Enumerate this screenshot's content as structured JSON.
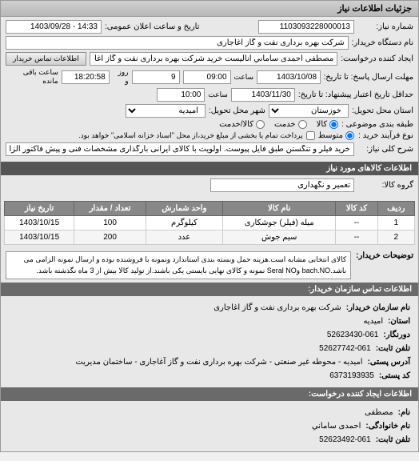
{
  "panel_title": "جزئیات اطلاعات نیاز",
  "form": {
    "request_no_label": "شماره نیاز:",
    "request_no": "1103093228000013",
    "public_date_label": "تاریخ و ساعت اعلان عمومی:",
    "public_date": "14:33 - 1403/09/28",
    "buyer_device_label": "نام دستگاه خریدار:",
    "buyer_device": "شرکت بهره برداری نفت و گاز اغاجاری",
    "creator_label": "ایجاد کننده درخواست:",
    "creator": "مصطفی احمدی ساماني آنالیست خرید شرکت بهره برداری نفت و گاز اغاجاری",
    "buyer_contact_btn": "اطلاعات تماس خریدار",
    "deadline_label": "مهلت ارسال پاسخ: تا تاریخ:",
    "deadline_date": "1403/10/08",
    "time_label": "ساعت",
    "deadline_time": "09:00",
    "days_remaining": "9",
    "days_remaining_label": "روز و",
    "hours_remaining": "18:20:58",
    "hours_remaining_label": "ساعت باقی مانده",
    "invoice_label": "حداقل تاریخ اعتبار پیشنهاد: تا تاریخ:",
    "invoice_date": "1403/11/30",
    "invoice_time": "10:00",
    "province_label": "استان محل تحویل:",
    "province": "",
    "city_label": "شهر محل تحویل:",
    "city": "امیدیه",
    "city_opt": "خوزستان",
    "general_condition_label": "طبقه بندی موضوعی :",
    "radio_goods": "کالا",
    "radio_service": "خدمت",
    "radio_partial": "کالا/خدمت",
    "purchase_type_label": "نوع فرآیند خرید :",
    "radio_avg": "متوسط",
    "payment_label": "پرداخت تمام یا بخشی از مبلغ خرید،از محل \"اسناد خزانه اسلامی\" خواهد بود.",
    "need_title_label": "شرح کلی نیاز:",
    "need_title": "خرید فیلر و تنگستن طبق فایل پیوست. اولویت با کالای ایرانی بارگذاری مشخصات فنی و پیش فاکتور الزامیست"
  },
  "goods_header": "اطلاعات کالاهای مورد نیاز",
  "goods_group_label": "گروه کالا:",
  "goods_group": "تعمیر و نگهداری",
  "table": {
    "headers": [
      "ردیف",
      "کد کالا",
      "نام کالا",
      "واحد شمارش",
      "تعداد / مقدار",
      "تاریخ نیاز"
    ],
    "rows": [
      [
        "1",
        "--",
        "میله (فیلر) جوشکاری",
        "کیلوگرم",
        "100",
        "1403/10/15"
      ],
      [
        "2",
        "--",
        "سیم جوش",
        "عدد",
        "200",
        "1403/10/15"
      ]
    ]
  },
  "buyer_desc_label": "توضیحات خریدار:",
  "buyer_desc": "کالای انتخابی مشابه است.هزینه حمل وبسته بندی استاندارد ونمونه با فروشنده بوده و ارسال نمونه الزامی می باشد.bach.NO وSeral NO نمونه و کالای نهایی بایستی یکی باشند.از تولید کالا بیش از 3 ماه نگذشته باشد.",
  "buyer_contact_header": "اطلاعات تماس سازمان خریدار:",
  "contact": {
    "org_label": "نام سازمان خریدار:",
    "org": "شرکت بهره برداری نفت و گاز اغاجاری",
    "province_label": "استان:",
    "province": "امیدیه",
    "fax_label": "دورنگار:",
    "fax": "52623430-061",
    "phone_label": "تلفن ثابت:",
    "phone": "52627742-061",
    "postal_label": "آدرس پستی:",
    "postal": "امیدیه - محوطه غیر صنعتی - شرکت بهره برداری نفت و گاز آغاجاری - ساختمان مدیریت",
    "postcode_label": "کد پستی:",
    "postcode": "6373193935"
  },
  "requester_contact_header": "اطلاعات ایجاد کننده درخواست:",
  "requester": {
    "name_label": "نام:",
    "name": "مصطفی",
    "lastname_label": "نام خانوادگی:",
    "lastname": "احمدی ساماني",
    "phone_label": "تلفن ثابت:",
    "phone": "52623492-061"
  }
}
